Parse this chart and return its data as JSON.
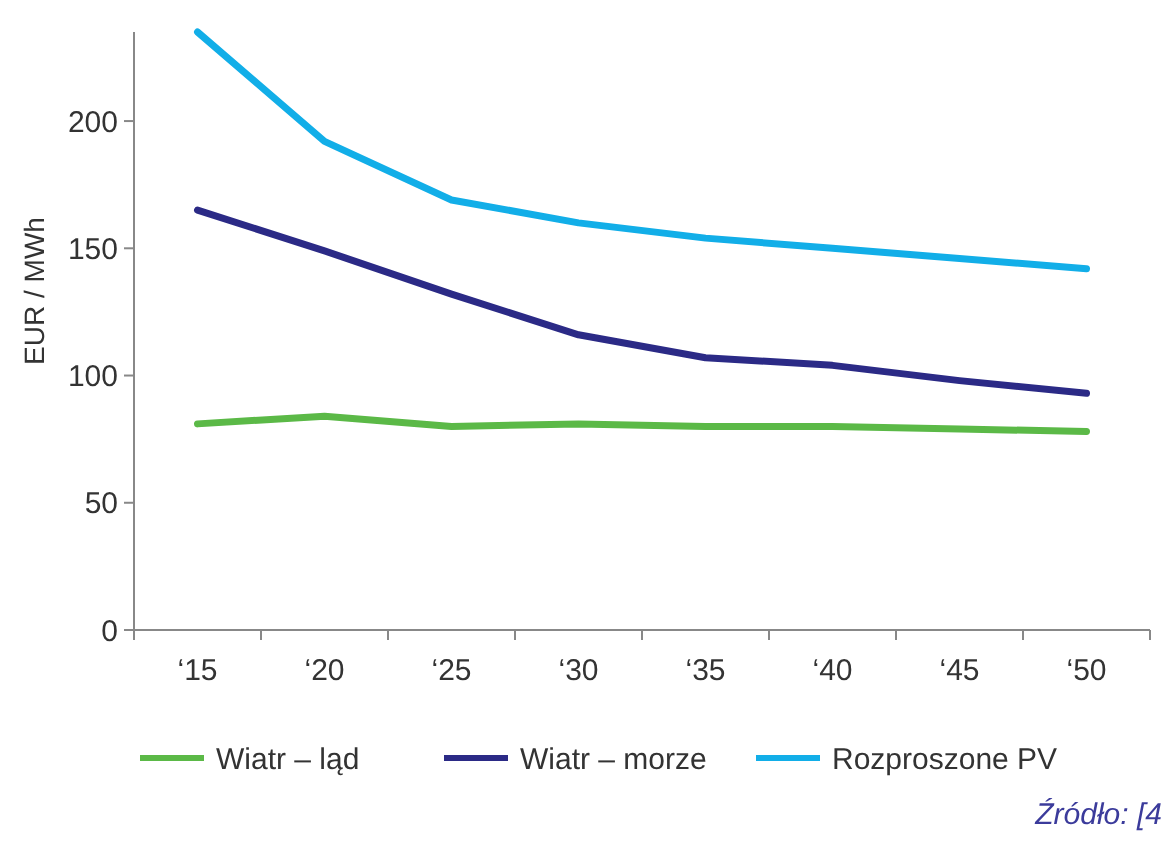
{
  "chart_data": {
    "type": "line",
    "ylabel": "EUR / MWh",
    "categories": [
      "‘15",
      "‘20",
      "‘25",
      "‘30",
      "‘35",
      "‘40",
      "‘45",
      "‘50"
    ],
    "series": [
      {
        "name": "Wiatr – ląd",
        "color": "#5bb947",
        "values": [
          81,
          84,
          80,
          81,
          80,
          80,
          79,
          78
        ]
      },
      {
        "name": "Wiatr – morze",
        "color": "#2b2a86",
        "values": [
          165,
          149,
          132,
          116,
          107,
          104,
          98,
          93
        ]
      },
      {
        "name": "Rozproszone PV",
        "color": "#12aee8",
        "values": [
          235,
          192,
          169,
          160,
          154,
          150,
          146,
          142
        ]
      }
    ],
    "ylim": [
      0,
      235
    ],
    "yticks": [
      0,
      50,
      100,
      150,
      200
    ],
    "grid": false,
    "legend": "bottom",
    "line_style": "solid",
    "annotations": [
      "Źródło: [4"
    ]
  }
}
